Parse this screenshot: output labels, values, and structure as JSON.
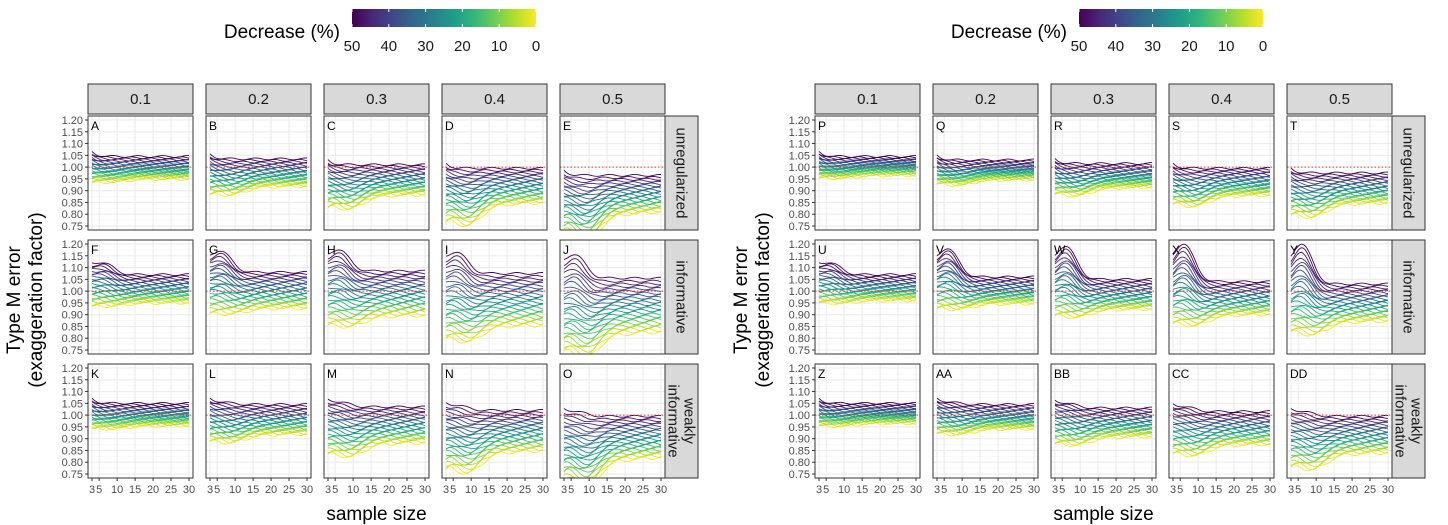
{
  "chart_data": [
    {
      "type": "line",
      "xlabel": "sample size",
      "ylabel_line1": "Type M error",
      "ylabel_line2": "(exaggeration factor)",
      "legend_title": "Decrease (%)",
      "legend_ticks": [
        "50",
        "40",
        "30",
        "20",
        "10",
        "0"
      ],
      "legend_range": [
        50,
        0
      ],
      "col_strips": [
        "0.1",
        "0.2",
        "0.3",
        "0.4",
        "0.5"
      ],
      "row_strips": [
        [
          "unregularized"
        ],
        [
          "informative"
        ],
        [
          "weakly",
          "informative"
        ]
      ],
      "panel_tags": [
        [
          "A",
          "B",
          "C",
          "D",
          "E"
        ],
        [
          "F",
          "G",
          "H",
          "I",
          "J"
        ],
        [
          "K",
          "L",
          "M",
          "N",
          "O"
        ]
      ],
      "x_ticks": [
        "3",
        "5",
        "10",
        "15",
        "20",
        "25",
        "30"
      ],
      "x_range": [
        3,
        30
      ],
      "y_ticks": [
        "0.75",
        "0.80",
        "0.85",
        "0.90",
        "0.95",
        "1.00",
        "1.05",
        "1.10",
        "1.15",
        "1.20"
      ],
      "y_range": [
        0.75,
        1.2
      ],
      "reference_line": 1.0,
      "grid": true
    },
    {
      "type": "line",
      "xlabel": "sample size",
      "ylabel_line1": "Type M error",
      "ylabel_line2": "(exaggeration factor)",
      "legend_title": "Decrease (%)",
      "legend_ticks": [
        "50",
        "40",
        "30",
        "20",
        "10",
        "0"
      ],
      "legend_range": [
        50,
        0
      ],
      "col_strips": [
        "0.1",
        "0.2",
        "0.3",
        "0.4",
        "0.5"
      ],
      "row_strips": [
        [
          "unregularized"
        ],
        [
          "informative"
        ],
        [
          "weakly",
          "informative"
        ]
      ],
      "panel_tags": [
        [
          "P",
          "Q",
          "R",
          "S",
          "T"
        ],
        [
          "U",
          "V",
          "W",
          "X",
          "Y"
        ],
        [
          "Z",
          "AA",
          "BB",
          "CC",
          "DD"
        ]
      ],
      "x_ticks": [
        "3",
        "5",
        "10",
        "15",
        "20",
        "25",
        "30"
      ],
      "x_range": [
        3,
        30
      ],
      "y_ticks": [
        "0.75",
        "0.80",
        "0.85",
        "0.90",
        "0.95",
        "1.00",
        "1.05",
        "1.10",
        "1.15",
        "1.20"
      ],
      "y_range": [
        0.75,
        1.2
      ],
      "reference_line": 1.0,
      "grid": true
    }
  ],
  "curve_params": {
    "n_curves": 26,
    "figures": [
      {
        "rows": [
          [
            {
              "top": 1.045,
              "bot": 0.95,
              "low": 0.93,
              "peak": 0,
              "dip": 0.01
            },
            {
              "top": 1.035,
              "bot": 0.915,
              "low": 0.885,
              "peak": 0,
              "dip": 0.03
            },
            {
              "top": 1.01,
              "bot": 0.875,
              "low": 0.84,
              "peak": 0,
              "dip": 0.05
            },
            {
              "top": 0.995,
              "bot": 0.835,
              "low": 0.79,
              "peak": 0,
              "dip": 0.08
            },
            {
              "top": 0.965,
              "bot": 0.79,
              "low": 0.755,
              "peak": 0,
              "dip": 0.11
            }
          ],
          [
            {
              "top": 1.07,
              "bot": 0.95,
              "low": 0.93,
              "peak": 0.05,
              "dip": 0.01
            },
            {
              "top": 1.08,
              "bot": 0.925,
              "low": 0.905,
              "peak": 0.09,
              "dip": 0.02
            },
            {
              "top": 1.085,
              "bot": 0.89,
              "low": 0.865,
              "peak": 0.09,
              "dip": 0.04
            },
            {
              "top": 1.075,
              "bot": 0.845,
              "low": 0.82,
              "peak": 0.09,
              "dip": 0.06
            },
            {
              "top": 1.055,
              "bot": 0.81,
              "low": 0.785,
              "peak": 0.1,
              "dip": 0.09
            }
          ],
          [
            {
              "top": 1.05,
              "bot": 0.955,
              "low": 0.94,
              "peak": 0,
              "dip": 0.01
            },
            {
              "top": 1.045,
              "bot": 0.915,
              "low": 0.895,
              "peak": 0.01,
              "dip": 0.03
            },
            {
              "top": 1.035,
              "bot": 0.875,
              "low": 0.85,
              "peak": 0.02,
              "dip": 0.05
            },
            {
              "top": 1.02,
              "bot": 0.835,
              "low": 0.8,
              "peak": 0.02,
              "dip": 0.08
            },
            {
              "top": 0.995,
              "bot": 0.8,
              "low": 0.755,
              "peak": 0.02,
              "dip": 0.11
            }
          ]
        ]
      },
      {
        "rows": [
          [
            {
              "top": 1.045,
              "bot": 0.965,
              "low": 0.955,
              "peak": 0,
              "dip": 0.01
            },
            {
              "top": 1.03,
              "bot": 0.945,
              "low": 0.935,
              "peak": 0,
              "dip": 0.02
            },
            {
              "top": 1.015,
              "bot": 0.91,
              "low": 0.895,
              "peak": 0,
              "dip": 0.03
            },
            {
              "top": 0.995,
              "bot": 0.875,
              "low": 0.855,
              "peak": 0,
              "dip": 0.04
            },
            {
              "top": 0.975,
              "bot": 0.84,
              "low": 0.81,
              "peak": 0,
              "dip": 0.05
            }
          ],
          [
            {
              "top": 1.07,
              "bot": 0.96,
              "low": 0.95,
              "peak": 0.05,
              "dip": 0.01
            },
            {
              "top": 1.06,
              "bot": 0.945,
              "low": 0.93,
              "peak": 0.12,
              "dip": 0.02
            },
            {
              "top": 1.05,
              "bot": 0.92,
              "low": 0.905,
              "peak": 0.14,
              "dip": 0.03
            },
            {
              "top": 1.04,
              "bot": 0.895,
              "low": 0.875,
              "peak": 0.16,
              "dip": 0.04
            },
            {
              "top": 1.03,
              "bot": 0.865,
              "low": 0.845,
              "peak": 0.17,
              "dip": 0.05
            }
          ],
          [
            {
              "top": 1.05,
              "bot": 0.965,
              "low": 0.955,
              "peak": 0,
              "dip": 0.01
            },
            {
              "top": 1.045,
              "bot": 0.94,
              "low": 0.925,
              "peak": 0.01,
              "dip": 0.02
            },
            {
              "top": 1.03,
              "bot": 0.905,
              "low": 0.885,
              "peak": 0.02,
              "dip": 0.03
            },
            {
              "top": 1.015,
              "bot": 0.87,
              "low": 0.845,
              "peak": 0.02,
              "dip": 0.04
            },
            {
              "top": 0.995,
              "bot": 0.83,
              "low": 0.8,
              "peak": 0.02,
              "dip": 0.06
            }
          ]
        ]
      }
    ]
  },
  "colors": {
    "viridis": [
      "#440154",
      "#482878",
      "#3e4989",
      "#31688e",
      "#26828e",
      "#1f9e89",
      "#35b779",
      "#6ece58",
      "#b5de2b",
      "#fde725"
    ],
    "reference_line": "#e8363a",
    "strip_fill": "#d9d9d9",
    "strip_border": "#333333",
    "panel_border": "#333333",
    "grid_major": "#ebebeb",
    "grid_minor": "#f5f5f5"
  }
}
